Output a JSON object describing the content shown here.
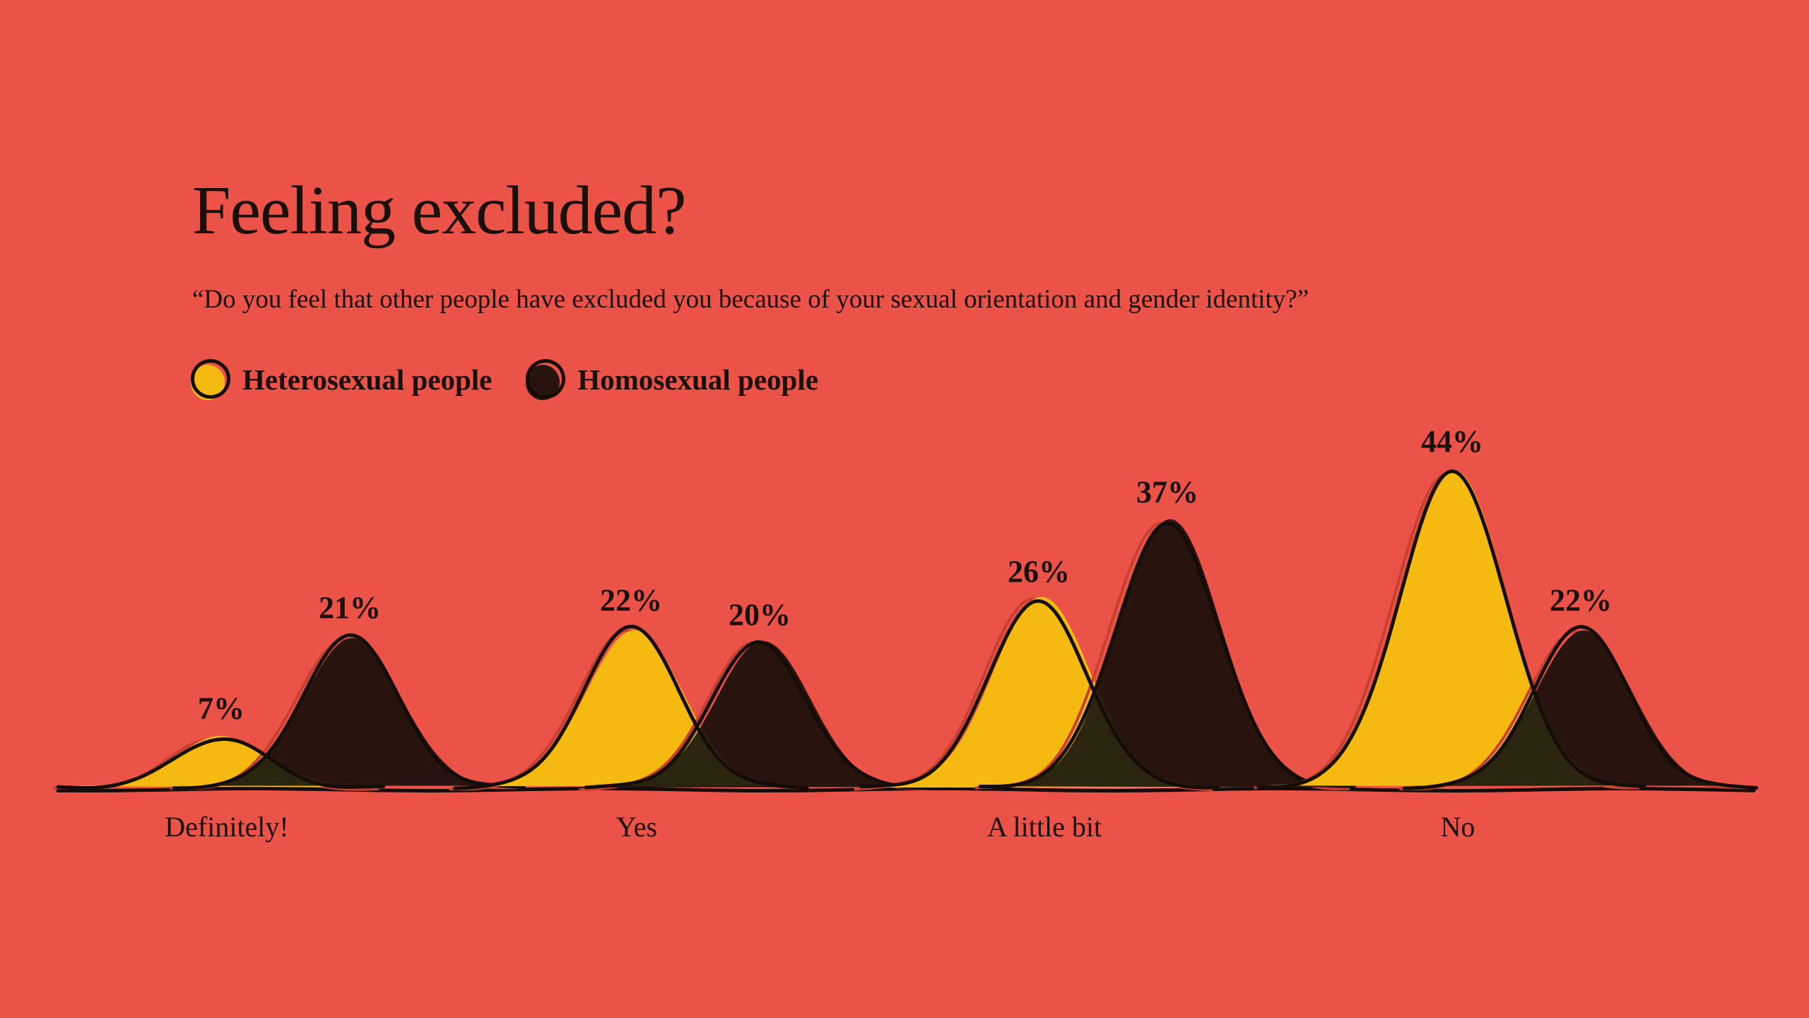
{
  "title": "Feeling excluded?",
  "subtitle": "“Do you feel that other people have excluded you because of your sexual orientation and gender identity?”",
  "legend": {
    "items": [
      {
        "label": "Heterosexual people",
        "color": "#f5ba0f"
      },
      {
        "label": "Homosexual people",
        "color": "#27140f"
      }
    ]
  },
  "colors": {
    "background": "#ec5348",
    "ink": "#150c08",
    "sketch_stroke": "#c8402f",
    "overlap": "#2b240e",
    "text": "#1b0f0a"
  },
  "chart_data": {
    "type": "area",
    "style": "hand-drawn overlapping bell-curve hills (one pair per answer) on a shared baseline",
    "title": "Feeling excluded?",
    "categories": [
      "Definitely!",
      "Yes",
      "A little bit",
      "No"
    ],
    "series": [
      {
        "name": "Heterosexual people",
        "color": "#f5ba0f",
        "values": [
          7,
          22,
          26,
          44
        ],
        "labels": [
          "7%",
          "22%",
          "26%",
          "44%"
        ]
      },
      {
        "name": "Homosexual people",
        "color": "#27140f",
        "values": [
          21,
          20,
          37,
          22
        ],
        "labels": [
          "21%",
          "20%",
          "37%",
          "22%"
        ]
      }
    ],
    "unit": "%",
    "ylim": [
      0,
      50
    ],
    "grid": false,
    "legend_position": "top-left"
  }
}
